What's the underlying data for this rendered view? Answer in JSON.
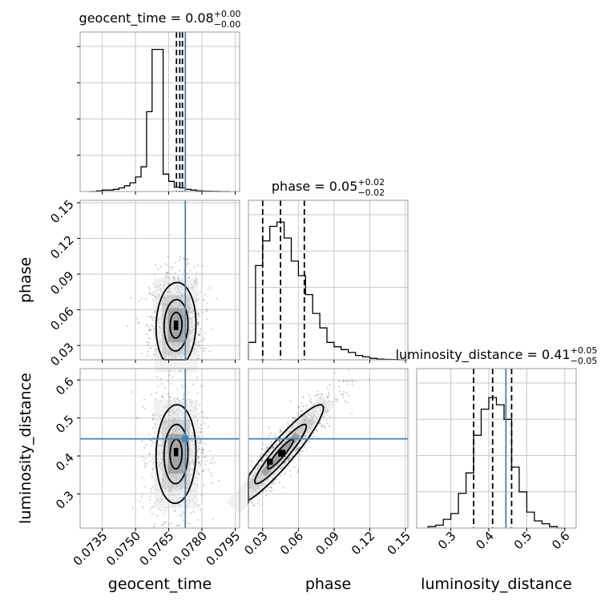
{
  "chart_data": {
    "type": "corner",
    "truth_color": "#4682b4",
    "parameters": [
      {
        "name": "geocent_time",
        "median": "0.08",
        "plus": "+0.00",
        "minus": "−0.00",
        "truth": 0.07725,
        "range": [
          0.0725,
          0.0797
        ],
        "q": [
          0.07685,
          0.077,
          0.07712
        ]
      },
      {
        "name": "phase",
        "median": "0.05",
        "plus": "+0.02",
        "minus": "−0.02",
        "truth": null,
        "range": [
          0.018,
          0.152
        ],
        "q": [
          0.03,
          0.045,
          0.065
        ]
      },
      {
        "name": "luminosity_distance",
        "median": "0.41",
        "plus": "+0.05",
        "minus": "−0.05",
        "truth": 0.445,
        "range": [
          0.21,
          0.63
        ],
        "q": [
          0.36,
          0.41,
          0.46
        ]
      }
    ],
    "diagonal_ticks": [
      {
        "values": [
          0.0735,
          0.075,
          0.0765,
          0.078,
          0.0795
        ],
        "labels": []
      },
      {
        "values": [
          0.03,
          0.06,
          0.09,
          0.12,
          0.15
        ],
        "labels": []
      },
      {
        "values": [
          0.3,
          0.4,
          0.5,
          0.6
        ],
        "labels": [
          "0.3",
          "0.4",
          "0.5",
          "0.6"
        ]
      }
    ],
    "y_ticks": [
      {
        "values": [
          0.03,
          0.06,
          0.09,
          0.12,
          0.15
        ],
        "labels": [
          "0.03",
          "0.06",
          "0.09",
          "0.12",
          "0.15"
        ]
      },
      {
        "values": [
          0.3,
          0.4,
          0.5,
          0.6
        ],
        "labels": [
          "0.3",
          "0.4",
          "0.5",
          "0.6"
        ]
      }
    ],
    "x_ticks": [
      {
        "values": [
          0.0735,
          0.075,
          0.0765,
          0.078,
          0.0795
        ],
        "labels": [
          "0.0735",
          "0.0750",
          "0.0765",
          "0.0780",
          "0.0795"
        ]
      },
      {
        "values": [
          0.03,
          0.06,
          0.09,
          0.12,
          0.15
        ],
        "labels": [
          "0.03",
          "0.06",
          "0.09",
          "0.12",
          "0.15"
        ]
      },
      {
        "values": [
          0.3,
          0.4,
          0.5,
          0.6
        ],
        "labels": [
          "0.3",
          "0.4",
          "0.5",
          "0.6"
        ]
      }
    ],
    "histograms": [
      {
        "bin_edges": [
          0.0729,
          0.07325,
          0.0735,
          0.07375,
          0.074,
          0.07425,
          0.0745,
          0.07475,
          0.075,
          0.07525,
          0.0755,
          0.07575,
          0.076,
          0.07625,
          0.0765,
          0.07675,
          0.077,
          0.07725,
          0.0775,
          0.07775,
          0.078,
          0.07825,
          0.0785,
          0.07875,
          0.079,
          0.07925
        ],
        "density": [
          0.0,
          0.005,
          0.01,
          0.01,
          0.015,
          0.025,
          0.04,
          0.06,
          0.1,
          0.17,
          0.55,
          0.98,
          0.98,
          0.12,
          0.07,
          0.03,
          0.025,
          0.015,
          0.01,
          0.005,
          0.003,
          0.002,
          0.001,
          0.0,
          0.0
        ]
      },
      {
        "bin_edges": [
          0.018,
          0.024,
          0.03,
          0.036,
          0.042,
          0.048,
          0.054,
          0.06,
          0.066,
          0.072,
          0.078,
          0.084,
          0.09,
          0.096,
          0.102,
          0.108,
          0.114,
          0.12,
          0.126,
          0.132,
          0.138,
          0.144,
          0.15
        ],
        "density": [
          0.12,
          0.65,
          0.82,
          0.92,
          0.95,
          0.84,
          0.68,
          0.58,
          0.45,
          0.32,
          0.22,
          0.12,
          0.09,
          0.07,
          0.05,
          0.03,
          0.02,
          0.01,
          0.005,
          0.003,
          0.002,
          0.0
        ]
      },
      {
        "bin_edges": [
          0.24,
          0.26,
          0.28,
          0.3,
          0.32,
          0.34,
          0.36,
          0.38,
          0.4,
          0.42,
          0.44,
          0.46,
          0.48,
          0.5,
          0.52,
          0.54,
          0.56,
          0.58,
          0.6
        ],
        "density": [
          0.01,
          0.02,
          0.06,
          0.1,
          0.24,
          0.38,
          0.64,
          0.82,
          0.9,
          0.85,
          0.75,
          0.42,
          0.25,
          0.11,
          0.05,
          0.03,
          0.01,
          0.0
        ]
      }
    ],
    "density_panels": [
      {
        "row": 1,
        "col": 0,
        "cx": 0.07683,
        "cy": 0.047,
        "sx": 0.00045,
        "sy": 0.018,
        "rho": 0.05,
        "n": 1100,
        "blocks": [
          {
            "x": 0.07683,
            "y": 0.047,
            "dx": 0.0002,
            "dy": 0.008
          }
        ]
      },
      {
        "row": 2,
        "col": 0,
        "cx": 0.07683,
        "cy": 0.405,
        "sx": 0.00045,
        "sy": 0.065,
        "rho": 0.05,
        "n": 1100,
        "blocks": [
          {
            "x": 0.07683,
            "y": 0.41,
            "dx": 0.0002,
            "dy": 0.022
          }
        ]
      },
      {
        "row": 2,
        "col": 1,
        "cx": 0.045,
        "cy": 0.405,
        "sx": 0.018,
        "sy": 0.065,
        "rho": 0.93,
        "n": 1100,
        "blocks": [
          {
            "x": 0.046,
            "y": 0.407,
            "dx": 0.006,
            "dy": 0.018
          },
          {
            "x": 0.036,
            "y": 0.385,
            "dx": 0.005,
            "dy": 0.016
          }
        ]
      }
    ],
    "xlabels": [
      "geocent_time",
      "phase",
      "luminosity_distance"
    ],
    "ylabels": [
      "phase",
      "luminosity_distance"
    ],
    "grid": true
  }
}
